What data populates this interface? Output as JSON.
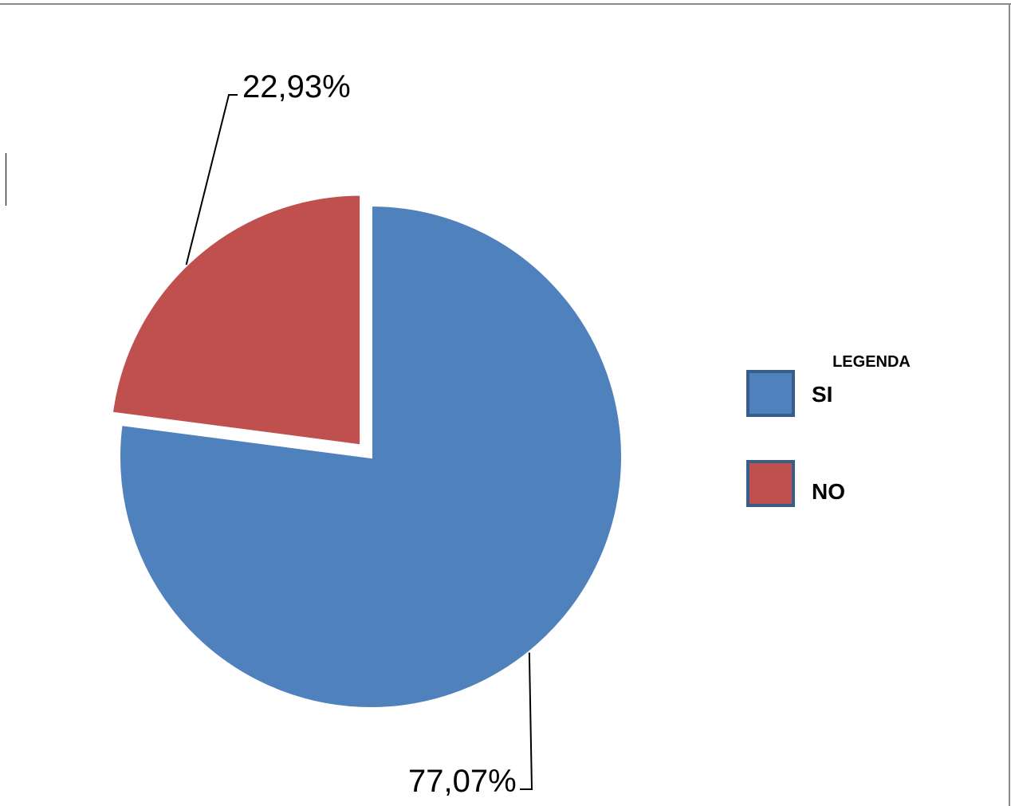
{
  "chart_data": {
    "type": "pie",
    "categories": [
      "SI",
      "NO"
    ],
    "values": [
      77.07,
      22.93
    ],
    "data_labels": [
      "77,07%",
      "22,93%"
    ],
    "colors": [
      "#4f81bd",
      "#c0504d"
    ],
    "legend_title": "LEGENDA",
    "legend_position": "right",
    "exploded": [
      "none",
      "slight"
    ]
  }
}
